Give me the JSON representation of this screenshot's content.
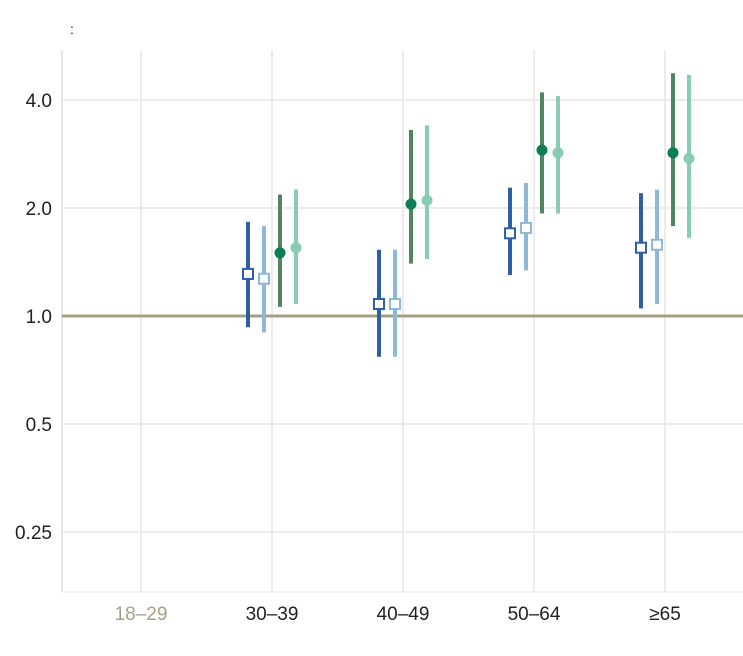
{
  "corner_mark": ":",
  "chart_data": {
    "type": "scatter",
    "title": "",
    "xlabel": "",
    "ylabel": "",
    "y_scale": "log2",
    "ylim": [
      0.2,
      5.0
    ],
    "y_ticks": [
      0.25,
      0.5,
      1.0,
      2.0,
      4.0
    ],
    "y_tick_labels": [
      "0.25",
      "0.5",
      "1.0",
      "2.0",
      "4.0"
    ],
    "reference_line": 1.0,
    "grid": true,
    "categories": [
      "18–29",
      "30–39",
      "40–49",
      "50–64",
      "≥65"
    ],
    "reference_category": "18–29",
    "colors": {
      "reference_category_label": "#a69f86",
      "reference_line": "#a69f86",
      "grid": "#e6e6e6",
      "axis": "#cccccc"
    },
    "series": [
      {
        "color": "#2f5f9e",
        "marker": "square-open",
        "points": [
          {
            "category": "18–29",
            "value": null,
            "low": null,
            "high": null
          },
          {
            "category": "30–39",
            "value": 1.31,
            "low": 0.93,
            "high": 1.83
          },
          {
            "category": "40–49",
            "value": 1.08,
            "low": 0.77,
            "high": 1.53
          },
          {
            "category": "50–64",
            "value": 1.7,
            "low": 1.3,
            "high": 2.28
          },
          {
            "category": "≥65",
            "value": 1.55,
            "low": 1.05,
            "high": 2.2
          }
        ]
      },
      {
        "color": "#8fb8d8",
        "marker": "square-open",
        "points": [
          {
            "category": "18–29",
            "value": null,
            "low": null,
            "high": null
          },
          {
            "category": "30–39",
            "value": 1.27,
            "low": 0.9,
            "high": 1.78
          },
          {
            "category": "40–49",
            "value": 1.08,
            "low": 0.77,
            "high": 1.53
          },
          {
            "category": "50–64",
            "value": 1.76,
            "low": 1.34,
            "high": 2.35
          },
          {
            "category": "≥65",
            "value": 1.58,
            "low": 1.08,
            "high": 2.25
          }
        ]
      },
      {
        "color": "#4f8560",
        "dot_color": "#0a7f56",
        "marker": "circle",
        "points": [
          {
            "category": "18–29",
            "value": null,
            "low": null,
            "high": null
          },
          {
            "category": "30–39",
            "value": 1.5,
            "low": 1.06,
            "high": 2.18
          },
          {
            "category": "40–49",
            "value": 2.05,
            "low": 1.4,
            "high": 3.3
          },
          {
            "category": "50–64",
            "value": 2.9,
            "low": 1.93,
            "high": 4.2
          },
          {
            "category": "≥65",
            "value": 2.85,
            "low": 1.78,
            "high": 4.75
          }
        ]
      },
      {
        "color": "#88cdb0",
        "marker": "circle",
        "points": [
          {
            "category": "18–29",
            "value": null,
            "low": null,
            "high": null
          },
          {
            "category": "30–39",
            "value": 1.55,
            "low": 1.08,
            "high": 2.25
          },
          {
            "category": "40–49",
            "value": 2.1,
            "low": 1.44,
            "high": 3.4
          },
          {
            "category": "50–64",
            "value": 2.85,
            "low": 1.93,
            "high": 4.1
          },
          {
            "category": "≥65",
            "value": 2.75,
            "low": 1.65,
            "high": 4.7
          }
        ]
      }
    ]
  }
}
